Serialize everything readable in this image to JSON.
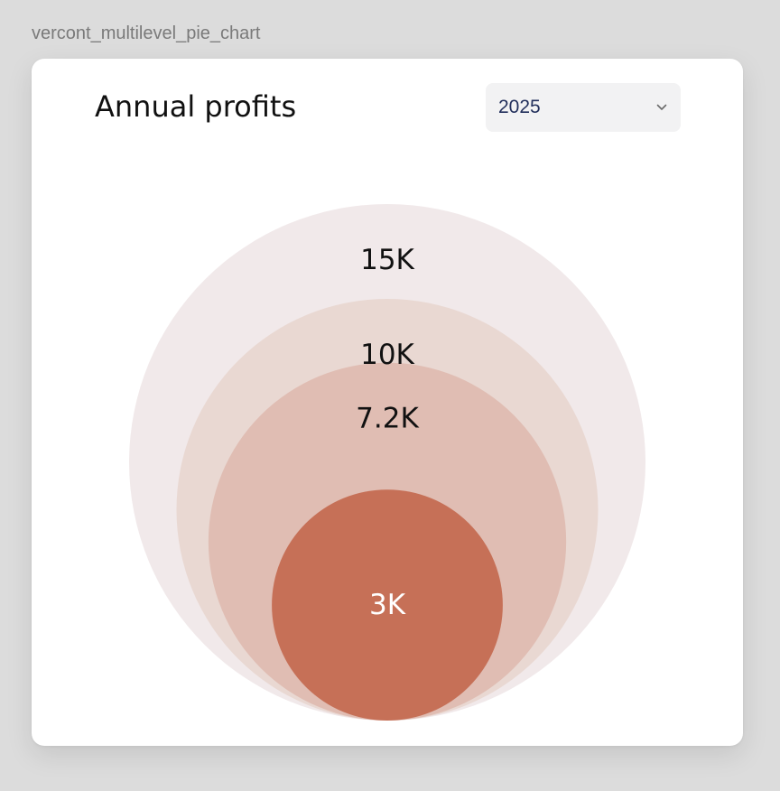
{
  "frame_label": "vercont_multilevel_pie_chart",
  "card": {
    "title": "Annual profits",
    "year_select": {
      "value": "2025",
      "icon": "chevron-down-icon"
    }
  },
  "chart_data": {
    "type": "pie",
    "title": "Annual profits",
    "values": [
      15000,
      10000,
      7200,
      3000
    ],
    "labels": [
      "15K",
      "10K",
      "7.2K",
      "3K"
    ],
    "colors": [
      "#f1e9ea",
      "#e9d8d2",
      "#e0bdb3",
      "#c67057"
    ],
    "label_colors": [
      "#111111",
      "#111111",
      "#111111",
      "#ffffff"
    ]
  }
}
